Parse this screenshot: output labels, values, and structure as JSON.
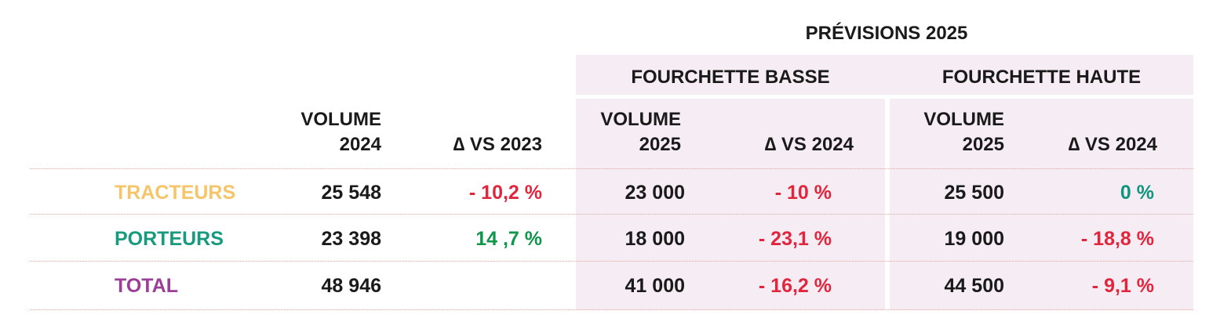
{
  "chart_data": {
    "type": "table",
    "group_header": "PRÉVISIONS 2025",
    "subgroups": [
      "FOURCHETTE BASSE",
      "FOURCHETTE HAUTE"
    ],
    "columns": {
      "volume_2024": [
        "VOLUME",
        "2024"
      ],
      "delta_2023": "∆ VS 2023",
      "low_volume": [
        "VOLUME",
        "2025"
      ],
      "low_delta": "∆ VS 2024",
      "high_volume": [
        "VOLUME",
        "2025"
      ],
      "high_delta": "∆ VS 2024"
    },
    "rows": [
      {
        "label": "TRACTEURS",
        "volume_2024": "25 548",
        "delta_2023": "- 10,2 %",
        "low_volume": "23 000",
        "low_delta": "- 10 %",
        "high_volume": "25 500",
        "high_delta": "0 %"
      },
      {
        "label": "PORTEURS",
        "volume_2024": "23 398",
        "delta_2023": "14 ,7 %",
        "low_volume": "18 000",
        "low_delta": "- 23,1 %",
        "high_volume": "19 000",
        "high_delta": "- 18,8 %"
      },
      {
        "label": "TOTAL",
        "volume_2024": "48 946",
        "delta_2023": "",
        "low_volume": "41 000",
        "low_delta": "- 16,2 %",
        "high_volume": "44 500",
        "high_delta": "- 9,1 %"
      }
    ],
    "colors": {
      "row_tracteurs": "#f6c56a",
      "row_porteurs": "#179a7e",
      "row_total": "#9a3f95",
      "negative": "#e1253d",
      "positive": "#10954b",
      "zero": "#109480",
      "forecast_background": "#f6ecf3"
    }
  }
}
